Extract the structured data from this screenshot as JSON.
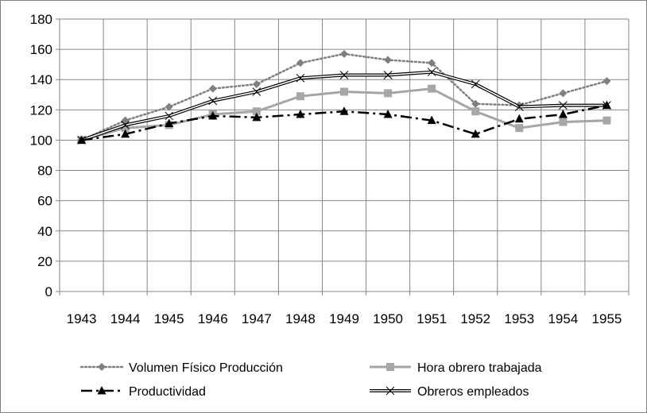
{
  "chart_data": {
    "type": "line",
    "title": "",
    "xlabel": "",
    "ylabel": "",
    "categories": [
      "1943",
      "1944",
      "1945",
      "1946",
      "1947",
      "1948",
      "1949",
      "1950",
      "1951",
      "1952",
      "1953",
      "1954",
      "1955"
    ],
    "ylim": [
      0,
      180
    ],
    "yticks": [
      "0",
      "20",
      "40",
      "60",
      "80",
      "100",
      "120",
      "140",
      "160",
      "180"
    ],
    "grid": true,
    "legend_position": "bottom",
    "series": [
      {
        "name": "Volumen Físico Producción",
        "color": "#7f7f7f",
        "marker": "diamond",
        "line": "dotted",
        "values": [
          100,
          113,
          122,
          134,
          137,
          151,
          157,
          153,
          151,
          124,
          123,
          131,
          139
        ]
      },
      {
        "name": "Hora obrero trabajada",
        "color": "#a6a6a6",
        "marker": "square",
        "line": "solid",
        "values": [
          100,
          108,
          110,
          117,
          119,
          129,
          132,
          131,
          134,
          119,
          108,
          112,
          113
        ]
      },
      {
        "name": "Productividad",
        "color": "#000000",
        "marker": "triangle",
        "line": "dashdot",
        "values": [
          100,
          104,
          111,
          116,
          115,
          117,
          119,
          117,
          113,
          104,
          114,
          117,
          123
        ]
      },
      {
        "name": "Obreros empleados",
        "color": "#000000",
        "marker": "x",
        "line": "double",
        "values": [
          100,
          110,
          116,
          126,
          132,
          141,
          143,
          143,
          145,
          137,
          122,
          123,
          123
        ]
      }
    ]
  }
}
